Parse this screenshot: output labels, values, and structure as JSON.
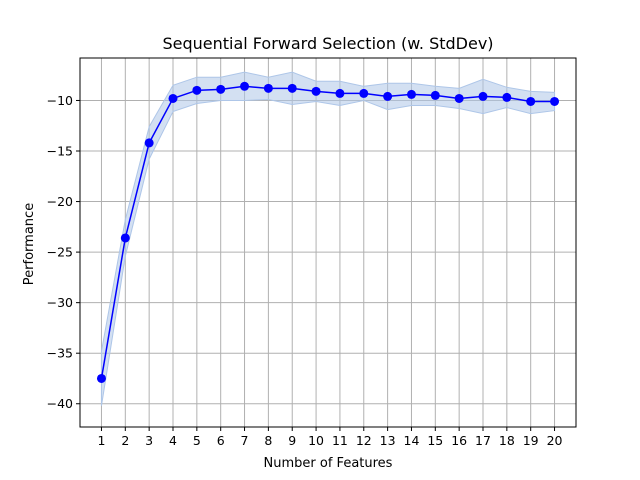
{
  "chart_data": {
    "type": "line",
    "title": "Sequential Forward Selection (w. StdDev)",
    "xlabel": "Number of Features",
    "ylabel": "Performance",
    "x": [
      1,
      2,
      3,
      4,
      5,
      6,
      7,
      8,
      9,
      10,
      11,
      12,
      13,
      14,
      15,
      16,
      17,
      18,
      19,
      20
    ],
    "series": [
      {
        "values": [
          -37.5,
          -23.6,
          -14.2,
          -9.8,
          -9.0,
          -8.9,
          -8.6,
          -8.8,
          -8.8,
          -9.1,
          -9.3,
          -9.3,
          -9.6,
          -9.4,
          -9.5,
          -9.8,
          -9.6,
          -9.7,
          -10.1,
          -10.1
        ],
        "std_upper": [
          -34.8,
          -21.8,
          -12.6,
          -8.5,
          -7.7,
          -7.7,
          -7.2,
          -7.7,
          -7.2,
          -8.1,
          -8.1,
          -8.6,
          -8.3,
          -8.3,
          -8.6,
          -8.8,
          -7.9,
          -8.7,
          -9.1,
          -9.2
        ],
        "std_lower": [
          -40.2,
          -25.4,
          -15.8,
          -11.1,
          -10.3,
          -10.0,
          -10.0,
          -9.9,
          -10.4,
          -10.1,
          -10.5,
          -10.0,
          -10.9,
          -10.5,
          -10.5,
          -10.8,
          -11.3,
          -10.7,
          -11.3,
          -11.0
        ],
        "color": "#0000ff",
        "band_color": "#aec6e8"
      }
    ],
    "xticks": [
      "1",
      "2",
      "3",
      "4",
      "5",
      "6",
      "7",
      "8",
      "9",
      "10",
      "11",
      "12",
      "13",
      "14",
      "15",
      "16",
      "17",
      "18",
      "19",
      "20"
    ],
    "yticks": [
      "−10",
      "−15",
      "−20",
      "−25",
      "−30",
      "−35",
      "−40"
    ],
    "ytick_values": [
      -10,
      -15,
      -20,
      -25,
      -30,
      -35,
      -40
    ],
    "xlim": [
      0.1,
      20.9
    ],
    "ylim": [
      -42.3,
      -5.8
    ],
    "grid": true
  }
}
